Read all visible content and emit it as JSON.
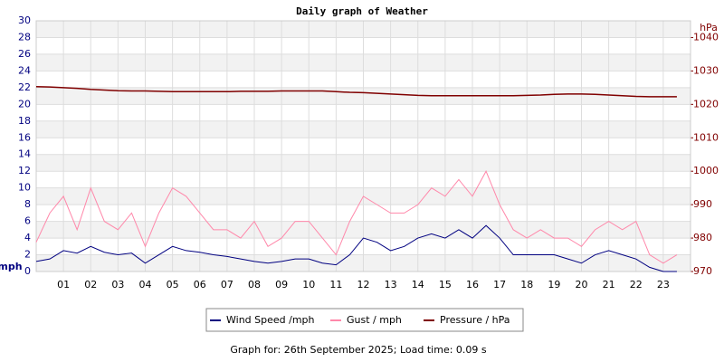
{
  "chart_data": {
    "type": "line",
    "title": "Daily graph of Weather",
    "footer": "Graph for: 26th September 2025; Load time: 0.09 s",
    "y_label": "mph",
    "y2_label": "hPa",
    "xlim": [
      0,
      24
    ],
    "xticks": [
      {
        "value": 1,
        "label": "01"
      },
      {
        "value": 2,
        "label": "02"
      },
      {
        "value": 3,
        "label": "03"
      },
      {
        "value": 4,
        "label": "04"
      },
      {
        "value": 5,
        "label": "05"
      },
      {
        "value": 6,
        "label": "06"
      },
      {
        "value": 7,
        "label": "07"
      },
      {
        "value": 8,
        "label": "08"
      },
      {
        "value": 9,
        "label": "09"
      },
      {
        "value": 10,
        "label": "10"
      },
      {
        "value": 11,
        "label": "11"
      },
      {
        "value": 12,
        "label": "12"
      },
      {
        "value": 13,
        "label": "13"
      },
      {
        "value": 14,
        "label": "14"
      },
      {
        "value": 15,
        "label": "15"
      },
      {
        "value": 16,
        "label": "16"
      },
      {
        "value": 17,
        "label": "17"
      },
      {
        "value": 18,
        "label": "18"
      },
      {
        "value": 19,
        "label": "19"
      },
      {
        "value": 20,
        "label": "20"
      },
      {
        "value": 21,
        "label": "21"
      },
      {
        "value": 22,
        "label": "22"
      },
      {
        "value": 23,
        "label": "23"
      }
    ],
    "ylim": [
      0,
      30
    ],
    "yticks": [
      0,
      2,
      4,
      6,
      8,
      10,
      12,
      14,
      16,
      18,
      20,
      22,
      24,
      26,
      28,
      30
    ],
    "y2lim": [
      970,
      1045
    ],
    "y2ticks": [
      970,
      980,
      990,
      1000,
      1010,
      1020,
      1030,
      1040
    ],
    "grid": true,
    "x": [
      0,
      0.5,
      1,
      1.5,
      2,
      2.5,
      3,
      3.5,
      4,
      4.5,
      5,
      5.5,
      6,
      6.5,
      7,
      7.5,
      8,
      8.5,
      9,
      9.5,
      10,
      10.5,
      11,
      11.5,
      12,
      12.5,
      13,
      13.5,
      14,
      14.5,
      15,
      15.5,
      16,
      16.5,
      17,
      17.5,
      18,
      18.5,
      19,
      19.5,
      20,
      20.5,
      21,
      21.5,
      22,
      22.5,
      23,
      23.5
    ],
    "series": [
      {
        "name": "Wind Speed /mph",
        "color": "#000080",
        "values": [
          1.2,
          1.5,
          2.5,
          2.2,
          3.0,
          2.3,
          2.0,
          2.2,
          1.0,
          2.0,
          3.0,
          2.5,
          2.3,
          2.0,
          1.8,
          1.5,
          1.2,
          1.0,
          1.2,
          1.5,
          1.5,
          1.0,
          0.8,
          2.0,
          4.0,
          3.5,
          2.5,
          3.0,
          4.0,
          4.5,
          4.0,
          5.0,
          4.0,
          5.5,
          4.0,
          2.0,
          2.0,
          2.0,
          2.0,
          1.5,
          1.0,
          2.0,
          2.5,
          2.0,
          1.5,
          0.5,
          0,
          0
        ]
      },
      {
        "name": "Gust / mph",
        "color": "#ff88aa",
        "values": [
          3.5,
          7,
          9,
          5,
          10,
          6,
          5,
          7,
          3,
          7,
          10,
          9,
          7,
          5,
          5,
          4,
          6,
          3,
          4,
          6,
          6,
          4,
          2,
          6,
          9,
          8,
          7,
          7,
          8,
          10,
          9,
          11,
          9,
          12,
          8,
          5,
          4,
          5,
          4,
          4,
          3,
          5,
          6,
          5,
          6,
          2,
          1,
          2
        ]
      },
      {
        "name": "Pressure / hPa",
        "color": "#800000",
        "axis": "y2",
        "values": [
          1025.3,
          1025.2,
          1025.0,
          1024.8,
          1024.5,
          1024.3,
          1024.1,
          1024.0,
          1024.0,
          1023.9,
          1023.8,
          1023.8,
          1023.8,
          1023.8,
          1023.8,
          1023.9,
          1023.9,
          1023.9,
          1024.0,
          1024.0,
          1024.0,
          1024.0,
          1023.8,
          1023.6,
          1023.5,
          1023.3,
          1023.1,
          1022.9,
          1022.7,
          1022.6,
          1022.6,
          1022.6,
          1022.6,
          1022.6,
          1022.6,
          1022.6,
          1022.7,
          1022.8,
          1023.0,
          1023.1,
          1023.1,
          1023.0,
          1022.8,
          1022.6,
          1022.4,
          1022.3,
          1022.3,
          1022.3
        ]
      }
    ]
  }
}
